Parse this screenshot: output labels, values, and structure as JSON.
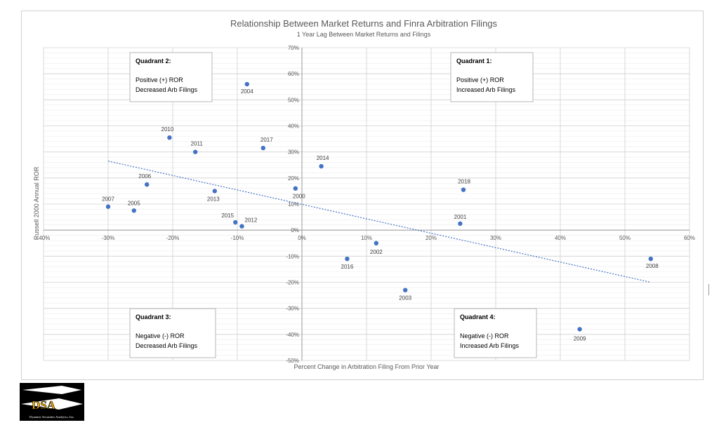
{
  "chart_data": {
    "type": "scatter",
    "title": "Relationship Between Market Returns and Finra Arbitration Filings",
    "subtitle": "1 Year Lag Between Market Returns and Filings",
    "xlabel": "Percent Change in Arbitration Filing From Prior Year",
    "ylabel": "Russell 2000 Annual ROR",
    "xlim": [
      -40,
      60
    ],
    "ylim": [
      -50,
      70
    ],
    "x_ticks": [
      -40,
      -30,
      -20,
      -10,
      0,
      10,
      20,
      30,
      40,
      50,
      60
    ],
    "y_ticks": [
      -50,
      -40,
      -30,
      -20,
      -10,
      0,
      10,
      20,
      30,
      40,
      50,
      60,
      70
    ],
    "x_tick_labels": [
      "-40%",
      "-30%",
      "-20%",
      "-10%",
      "0%",
      "10%",
      "20%",
      "30%",
      "40%",
      "50%",
      "60%"
    ],
    "y_tick_labels": [
      "-50%",
      "-40%",
      "-30%",
      "-20%",
      "-10%",
      "0%",
      "10%",
      "20%",
      "30%",
      "40%",
      "50%",
      "60%",
      "70%"
    ],
    "grid": true,
    "marker_color": "#4472c4",
    "trendline": {
      "type": "linear",
      "color": "#4472c4",
      "x": [
        -30,
        54
      ],
      "y": [
        26.5,
        -20
      ]
    },
    "points": [
      {
        "label": "2004",
        "x": -8.5,
        "y": 56
      },
      {
        "label": "2010",
        "x": -20.5,
        "y": 35.5
      },
      {
        "label": "2011",
        "x": -16.5,
        "y": 30
      },
      {
        "label": "2017",
        "x": -6,
        "y": 31.5
      },
      {
        "label": "2014",
        "x": 3,
        "y": 24.5
      },
      {
        "label": "2006",
        "x": -24,
        "y": 17.5
      },
      {
        "label": "2013",
        "x": -13.5,
        "y": 15
      },
      {
        "label": "2000",
        "x": -1,
        "y": 16
      },
      {
        "label": "2018",
        "x": 25,
        "y": 15.5
      },
      {
        "label": "2007",
        "x": -30,
        "y": 9
      },
      {
        "label": "2005",
        "x": -26,
        "y": 7.5
      },
      {
        "label": "2015",
        "x": -10.3,
        "y": 3
      },
      {
        "label": "2012",
        "x": -9.3,
        "y": 1.5
      },
      {
        "label": "2001",
        "x": 24.5,
        "y": 2.5
      },
      {
        "label": "2002",
        "x": 11.5,
        "y": -5
      },
      {
        "label": "2016",
        "x": 7,
        "y": -11
      },
      {
        "label": "2008",
        "x": 54,
        "y": -11
      },
      {
        "label": "2003",
        "x": 16,
        "y": -23
      },
      {
        "label": "2009",
        "x": 43,
        "y": -38
      }
    ],
    "annotations": [
      {
        "id": "q2",
        "title": "Quadrant 2:",
        "line1": "Positive (+) ROR",
        "line2": "Decreased Arb Filings"
      },
      {
        "id": "q1",
        "title": "Quadrant 1:",
        "line1": "Positive (+) ROR",
        "line2": "Increased Arb Filings"
      },
      {
        "id": "q3",
        "title": "Quadrant 3:",
        "line1": "Negative (-) ROR",
        "line2": "Decreased Arb Filings"
      },
      {
        "id": "q4",
        "title": "Quadrant 4:",
        "line1": "Negative (-) ROR",
        "line2": "Increased Arb Filings"
      }
    ]
  },
  "logo": {
    "letters": "DSA",
    "company": "Dynamic Securities Analytics, Inc."
  }
}
